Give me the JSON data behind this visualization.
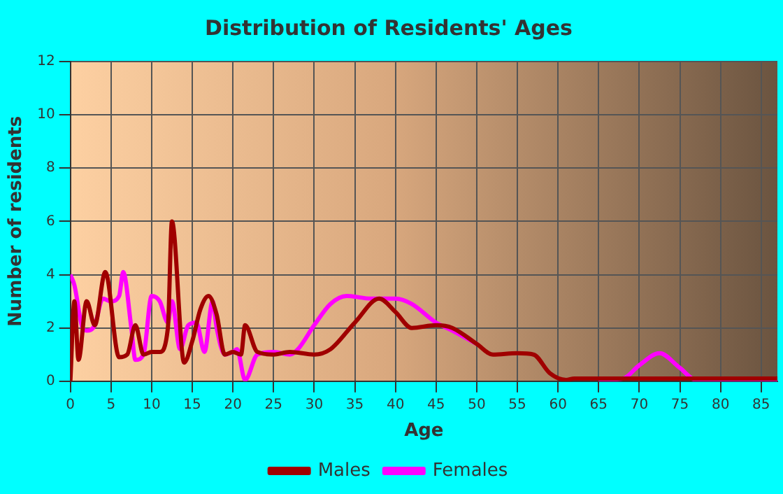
{
  "chart_data": {
    "type": "line",
    "title": "Distribution of Residents' Ages",
    "xlabel": "Age",
    "ylabel": "Number of residents",
    "xlim": [
      0,
      87
    ],
    "xticks": [
      0,
      5,
      10,
      15,
      20,
      25,
      30,
      35,
      40,
      45,
      50,
      55,
      60,
      65,
      70,
      75,
      80,
      85
    ],
    "ylim": [
      0,
      12
    ],
    "yticks": [
      0,
      2,
      4,
      6,
      8,
      10,
      12
    ],
    "grid": true,
    "legend": "bottom",
    "marker": "none",
    "series": [
      {
        "name": "Males",
        "color": "#a00000",
        "x": [
          0,
          0.5,
          1,
          2,
          3,
          4.3,
          6,
          7,
          8,
          9,
          10,
          11,
          12,
          12.5,
          14,
          15,
          16,
          17,
          18,
          19,
          20,
          21,
          21.5,
          23,
          25,
          27,
          30,
          32,
          35,
          38,
          40,
          42,
          45,
          47,
          50,
          52,
          55,
          57,
          59,
          61,
          62,
          87
        ],
        "values": [
          0,
          3,
          0.8,
          3,
          2.1,
          4.1,
          0.9,
          1,
          2.1,
          1,
          1.1,
          1.1,
          2,
          6,
          0.7,
          1.5,
          2.7,
          3.2,
          2.5,
          1,
          1.1,
          1,
          2.1,
          1.1,
          1,
          1.1,
          1,
          1.2,
          2.2,
          3.1,
          2.6,
          2,
          2.1,
          2,
          1.4,
          1,
          1.05,
          1,
          0.3,
          0.05,
          0.1,
          0.1
        ]
      },
      {
        "name": "Females",
        "color": "#ff00ff",
        "x": [
          0,
          0.5,
          1.5,
          2,
          3,
          4,
          5,
          6,
          6.5,
          7.5,
          8,
          9,
          10,
          11,
          12,
          12.5,
          13.5,
          14.5,
          15.5,
          16.5,
          17.5,
          18,
          19,
          20,
          20.5,
          21.5,
          23,
          25,
          27,
          28,
          30,
          32,
          34,
          37,
          40,
          42,
          45,
          47,
          50,
          52,
          55,
          57,
          59,
          61,
          65,
          68,
          70,
          72.5,
          75,
          77,
          87
        ],
        "values": [
          4,
          3.6,
          2,
          1.9,
          2.1,
          3.1,
          3,
          3.2,
          4.1,
          2,
          0.8,
          1,
          3.2,
          3,
          2.2,
          3,
          1.2,
          2.1,
          2.2,
          1.1,
          3,
          2,
          1,
          1.1,
          1.2,
          0.05,
          1,
          1.1,
          1,
          1.2,
          2.1,
          2.9,
          3.2,
          3.1,
          3.1,
          2.9,
          2.2,
          1.9,
          1.4,
          null,
          null,
          null,
          null,
          null,
          0.05,
          0.1,
          0.6,
          1.05,
          0.5,
          0.05,
          0.05
        ]
      }
    ]
  }
}
